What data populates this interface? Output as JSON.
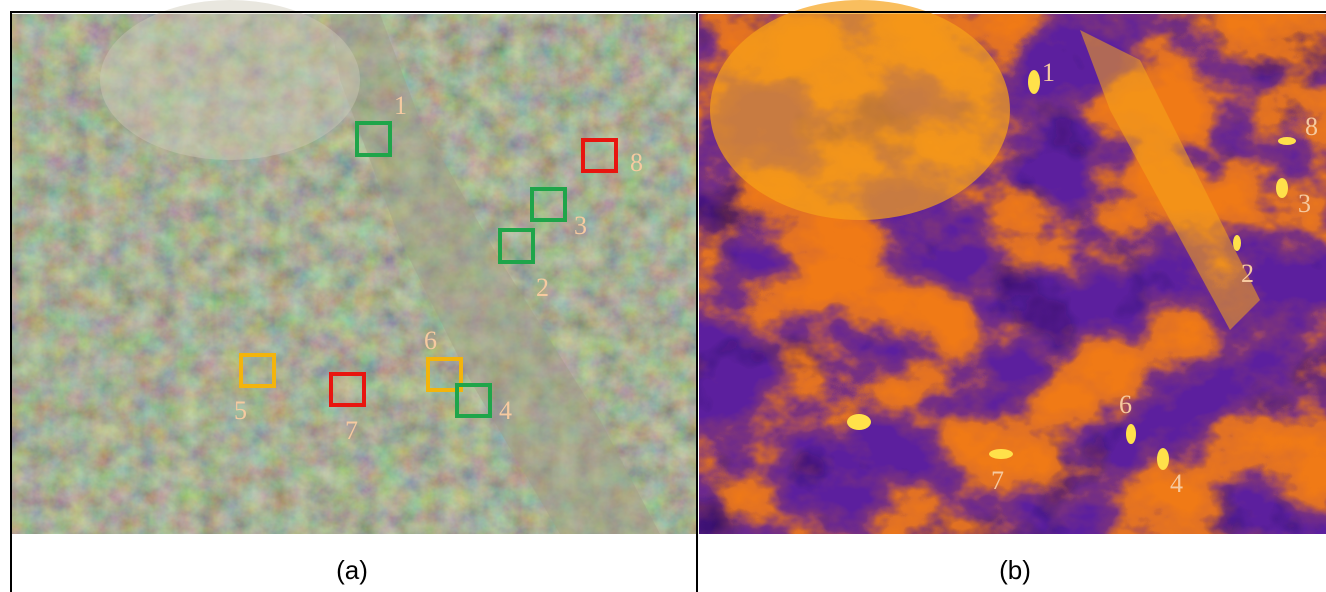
{
  "panels": [
    {
      "caption": "(a)",
      "labels": [
        "1",
        "8",
        "3",
        "2",
        "6",
        "5",
        "7",
        "4"
      ]
    },
    {
      "caption": "(b)",
      "labels": [
        "1",
        "8",
        "3",
        "2",
        "6",
        "7",
        "4"
      ]
    }
  ]
}
